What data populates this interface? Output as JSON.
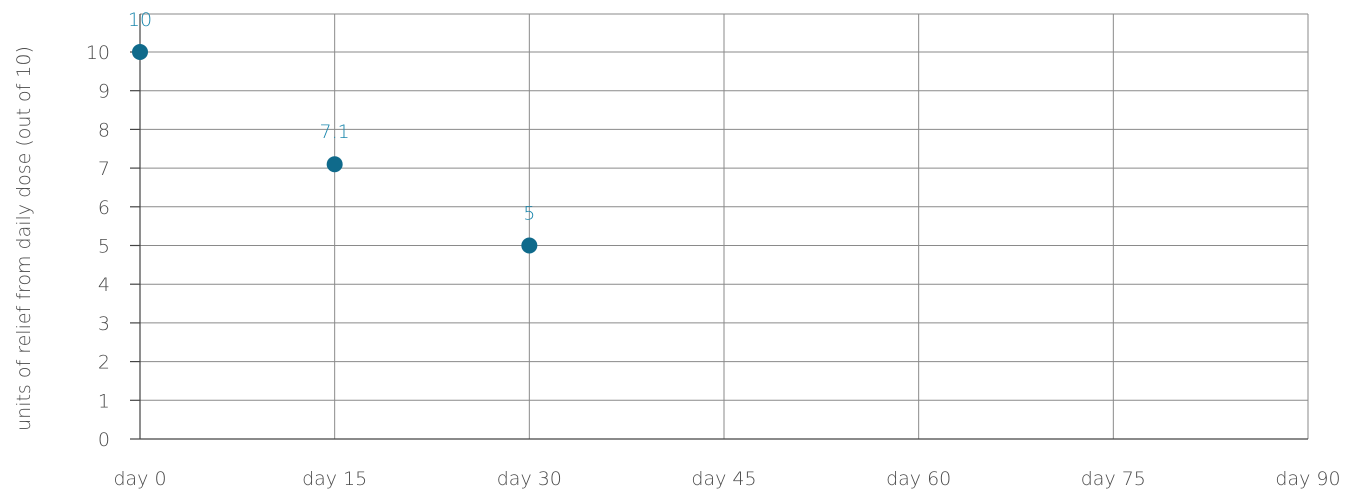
{
  "chart_data": {
    "type": "scatter",
    "title": "",
    "xlabel": "",
    "ylabel": "units of relief from daily dose (out of 10)",
    "categories": [
      "day 0",
      "day 15",
      "day 30",
      "day 45",
      "day 60",
      "day 75",
      "day 90"
    ],
    "series": [
      {
        "values": [
          10,
          7.1,
          5
        ],
        "labels": [
          "10",
          "7.1",
          "5"
        ]
      }
    ],
    "ylim": [
      0,
      10
    ],
    "yticks": [
      "0",
      "1",
      "2",
      "3",
      "4",
      "5",
      "6",
      "7",
      "8",
      "9",
      "10"
    ],
    "grid": true,
    "legend": "none",
    "colors": {
      "marker": "#0f6a8b",
      "data_label": "#1b87ad",
      "grid": "#8a8a8a",
      "text": "#4a4a4a"
    }
  }
}
